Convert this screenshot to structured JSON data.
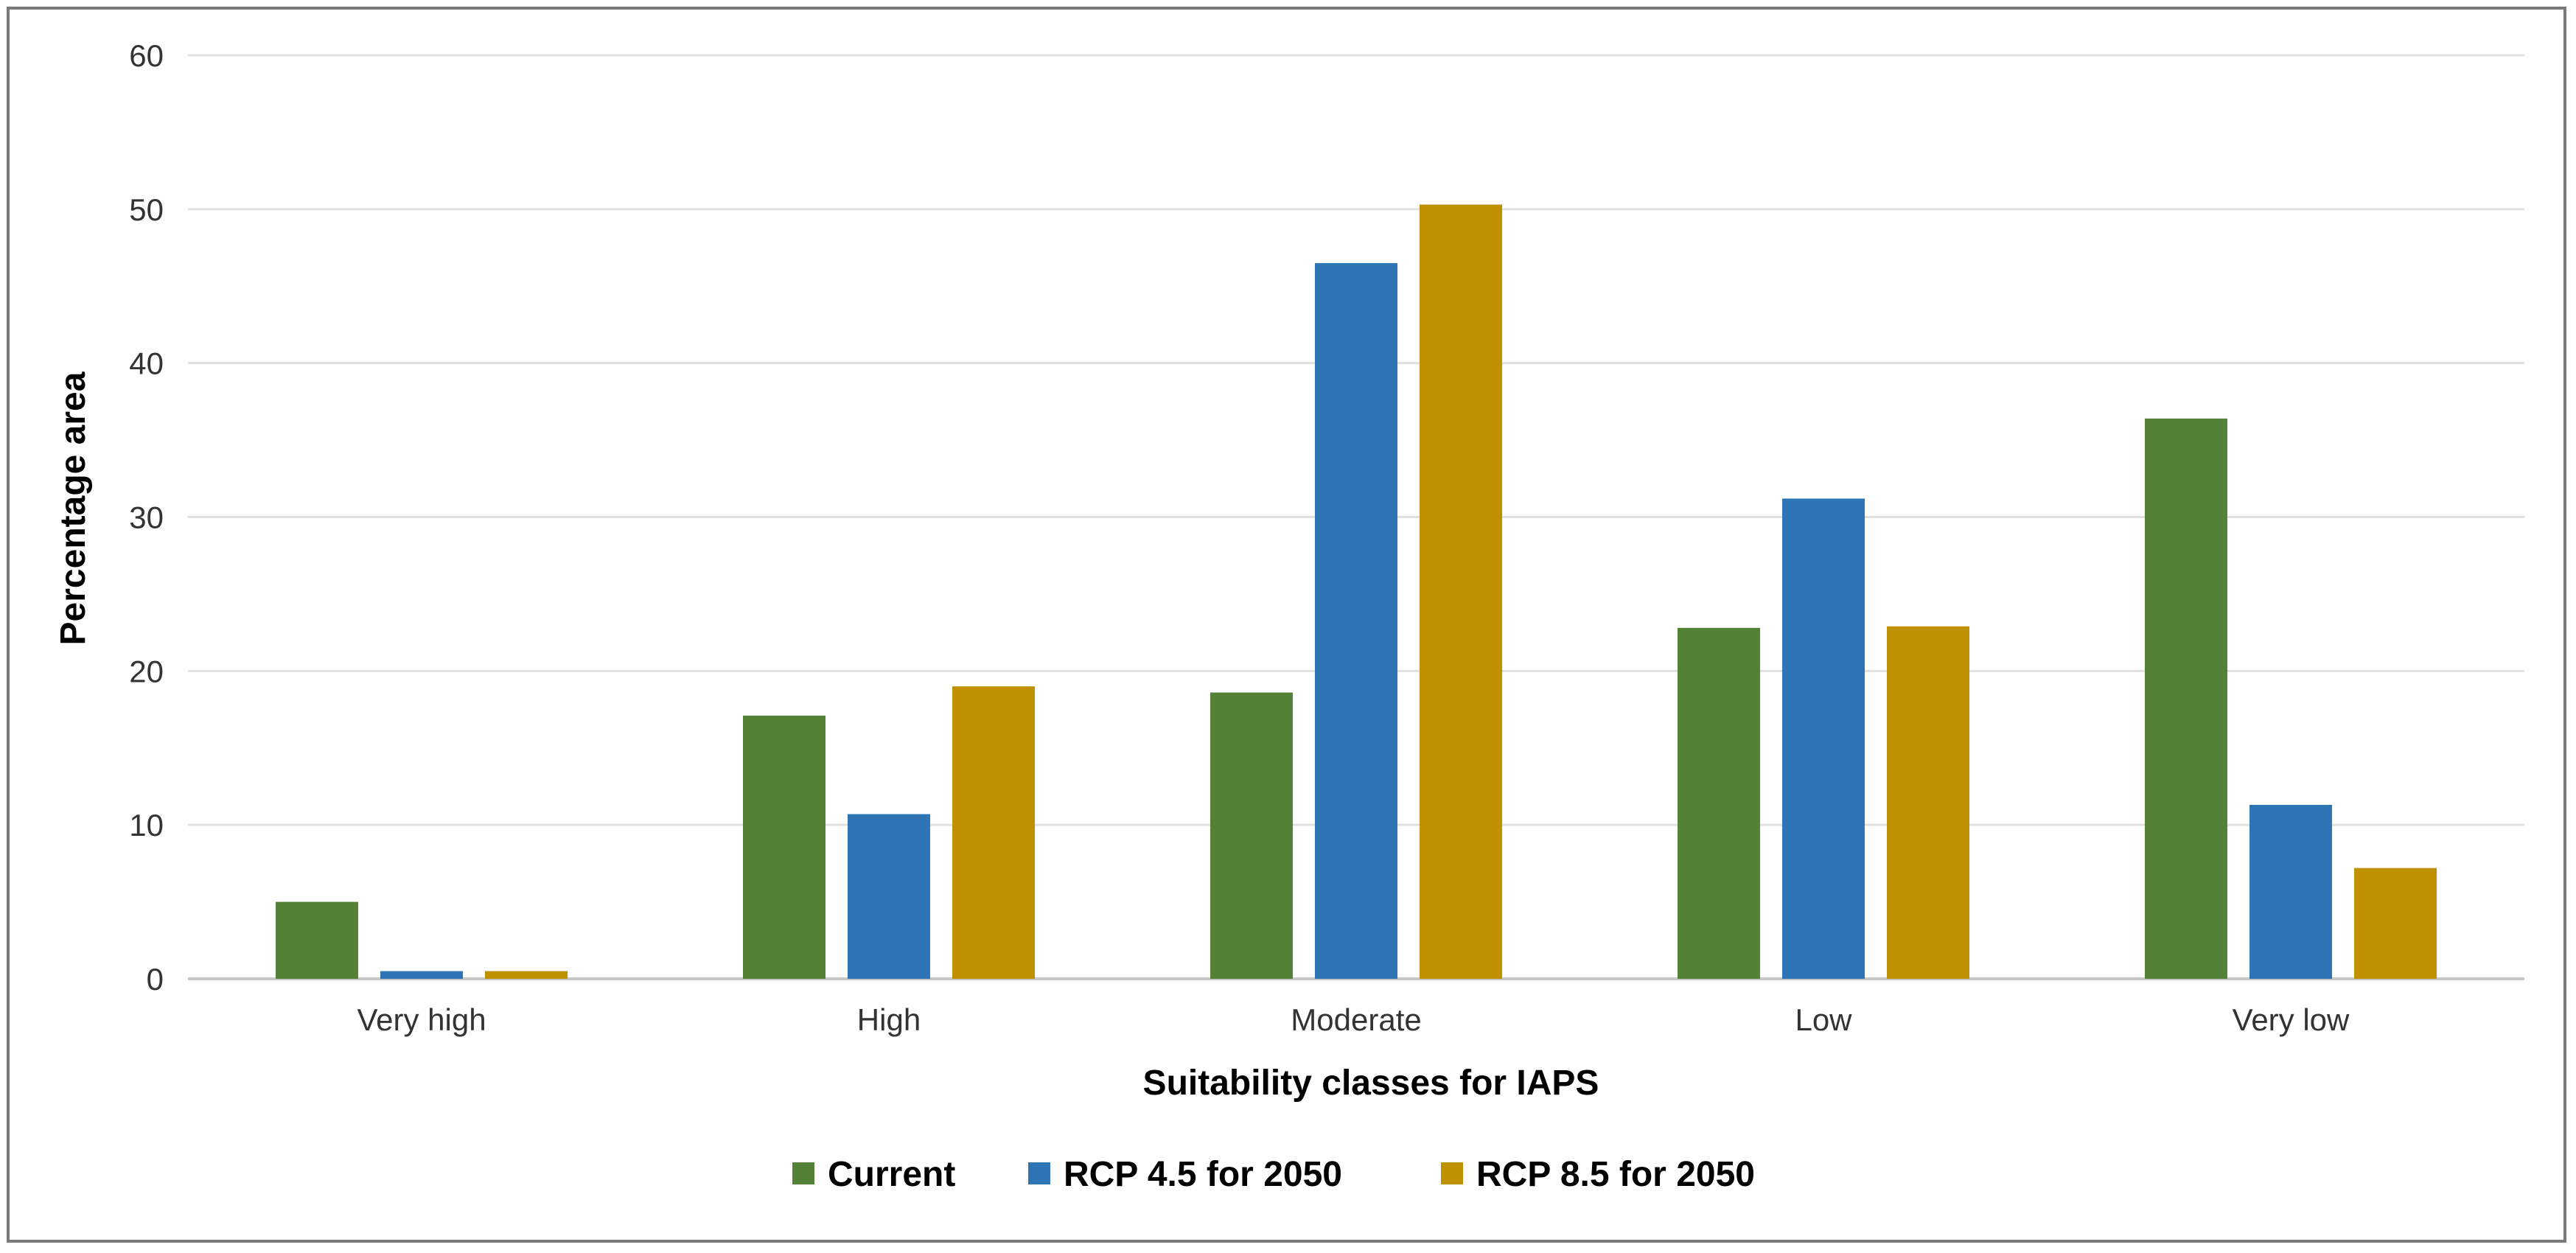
{
  "chart_data": {
    "type": "bar",
    "title": "",
    "xlabel": "Suitability classes for IAPS",
    "ylabel": "Percentage area",
    "ylim": [
      0,
      60
    ],
    "yticks": [
      0,
      10,
      20,
      30,
      40,
      50,
      60
    ],
    "grid": true,
    "legend_position": "bottom",
    "categories": [
      "Very high",
      "High",
      "Moderate",
      "Low",
      "Very low"
    ],
    "series": [
      {
        "name": "Current",
        "color": "#538135",
        "values": [
          5.0,
          17.1,
          18.6,
          22.8,
          36.4
        ]
      },
      {
        "name": "RCP 4.5 for 2050",
        "color": "#2e75b6",
        "values": [
          0.5,
          10.7,
          46.5,
          31.2,
          11.3
        ]
      },
      {
        "name": "RCP 8.5 for 2050",
        "color": "#bf9000",
        "values": [
          0.5,
          19.0,
          50.3,
          22.9,
          7.2
        ]
      }
    ]
  }
}
